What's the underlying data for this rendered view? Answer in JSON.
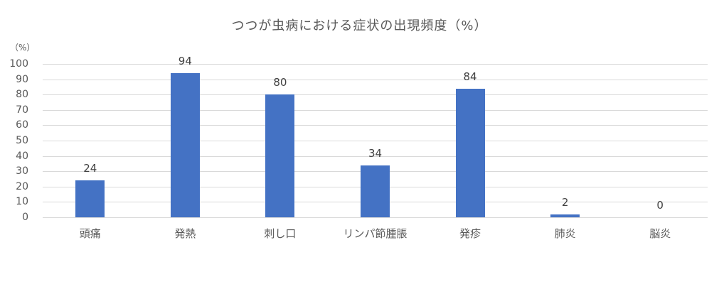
{
  "chart_data": {
    "type": "bar",
    "title": "つつが虫病における症状の出現頻度（%）",
    "xlabel": "",
    "ylabel": "（%）",
    "ylim": [
      0,
      100
    ],
    "yticks": [
      "0",
      "10",
      "20",
      "30",
      "40",
      "50",
      "60",
      "70",
      "80",
      "90",
      "100"
    ],
    "grid": true,
    "legend": "none",
    "bar_color": "#4472c4",
    "categories": [
      "頭痛",
      "発熱",
      "刺し口",
      "リンパ節腫脹",
      "発疹",
      "肺炎",
      "脳炎"
    ],
    "values": [
      24,
      94,
      80,
      34,
      84,
      2,
      0
    ],
    "data_labels": [
      "24",
      "94",
      "80",
      "34",
      "84",
      "2",
      "0"
    ]
  }
}
